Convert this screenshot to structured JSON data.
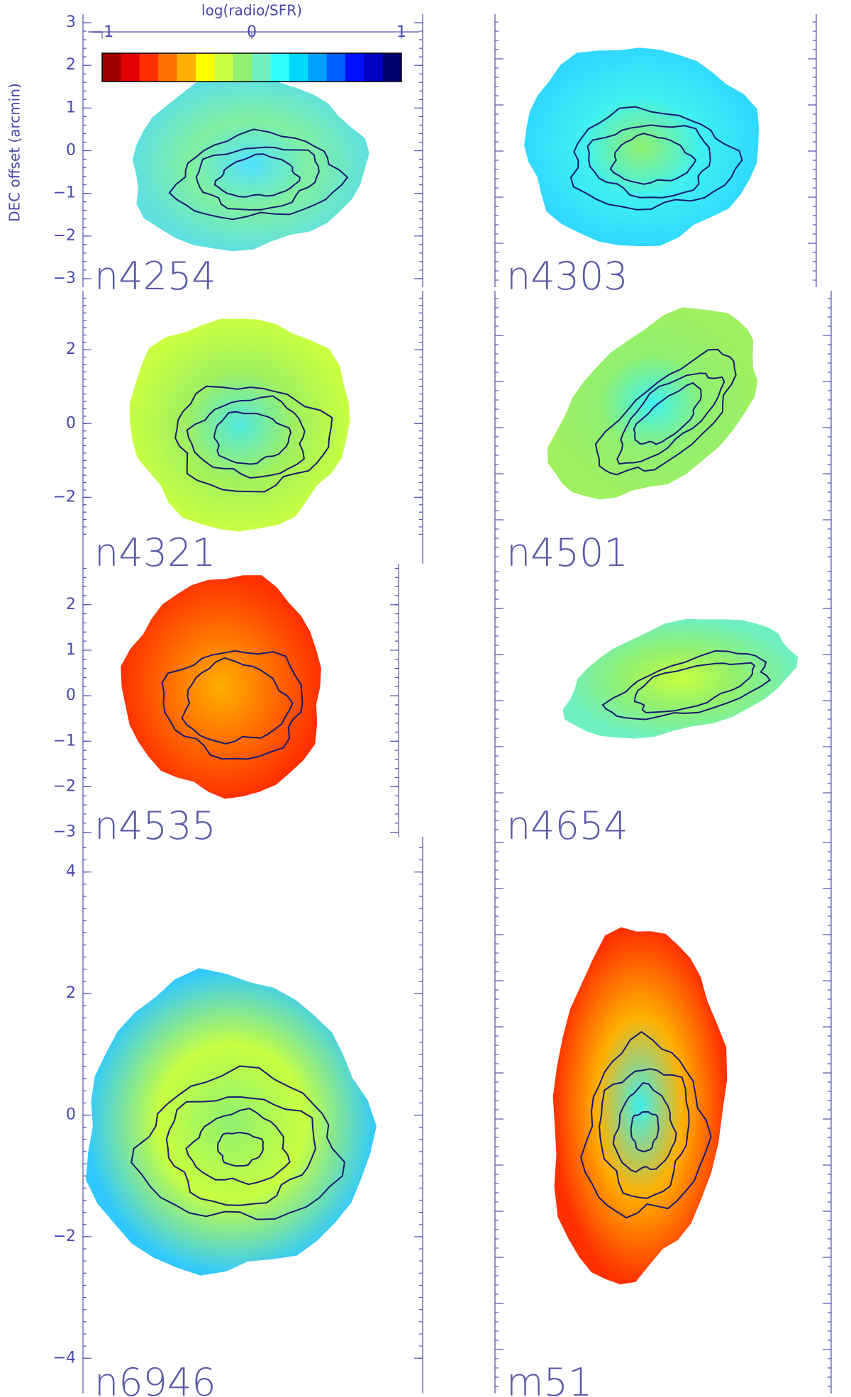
{
  "ylabel": "DEC offset (arcmin)",
  "colorbar": {
    "title": "log(radio/SFR)",
    "clim": [
      -1,
      1
    ],
    "ticks": [
      {
        "value": -1,
        "label": "−1"
      },
      0,
      1
    ],
    "colors": [
      "#a00000",
      "#e00000",
      "#ff3000",
      "#ff7000",
      "#ffb000",
      "#ffff00",
      "#c8ff40",
      "#90f070",
      "#70f0c0",
      "#30ffff",
      "#00d8ff",
      "#00a0ff",
      "#0060ff",
      "#0010ff",
      "#0000c0",
      "#000070"
    ]
  },
  "chart_data": [
    {
      "type": "map",
      "title": "n4254",
      "ylim": [
        -3.2,
        3.2
      ],
      "yticks": [
        {
          "value": -3,
          "label": "−3"
        },
        {
          "value": -2,
          "label": "−2"
        },
        {
          "value": -1,
          "label": "−1"
        },
        0,
        1,
        2,
        3
      ]
    },
    {
      "type": "map",
      "title": "n4303"
    },
    {
      "type": "map",
      "title": "n4321",
      "ylim": [
        -3.8,
        3.6
      ],
      "yticks": [
        {
          "value": -2,
          "label": "−2"
        },
        0,
        2
      ]
    },
    {
      "type": "map",
      "title": "n4501"
    },
    {
      "type": "map",
      "title": "n4535",
      "ylim": [
        -3.1,
        2.9
      ],
      "yticks": [
        {
          "value": -3,
          "label": "−3"
        },
        {
          "value": -2,
          "label": "−2"
        },
        {
          "value": -1,
          "label": "−1"
        },
        0,
        1,
        2
      ]
    },
    {
      "type": "map",
      "title": "n4654"
    },
    {
      "type": "map",
      "title": "n6946",
      "ylim": [
        -4.58,
        4.58
      ],
      "yticks": [
        {
          "value": -4,
          "label": "−4"
        },
        {
          "value": -2,
          "label": "−2"
        },
        0,
        2,
        4
      ]
    },
    {
      "type": "map",
      "title": "m51"
    }
  ]
}
